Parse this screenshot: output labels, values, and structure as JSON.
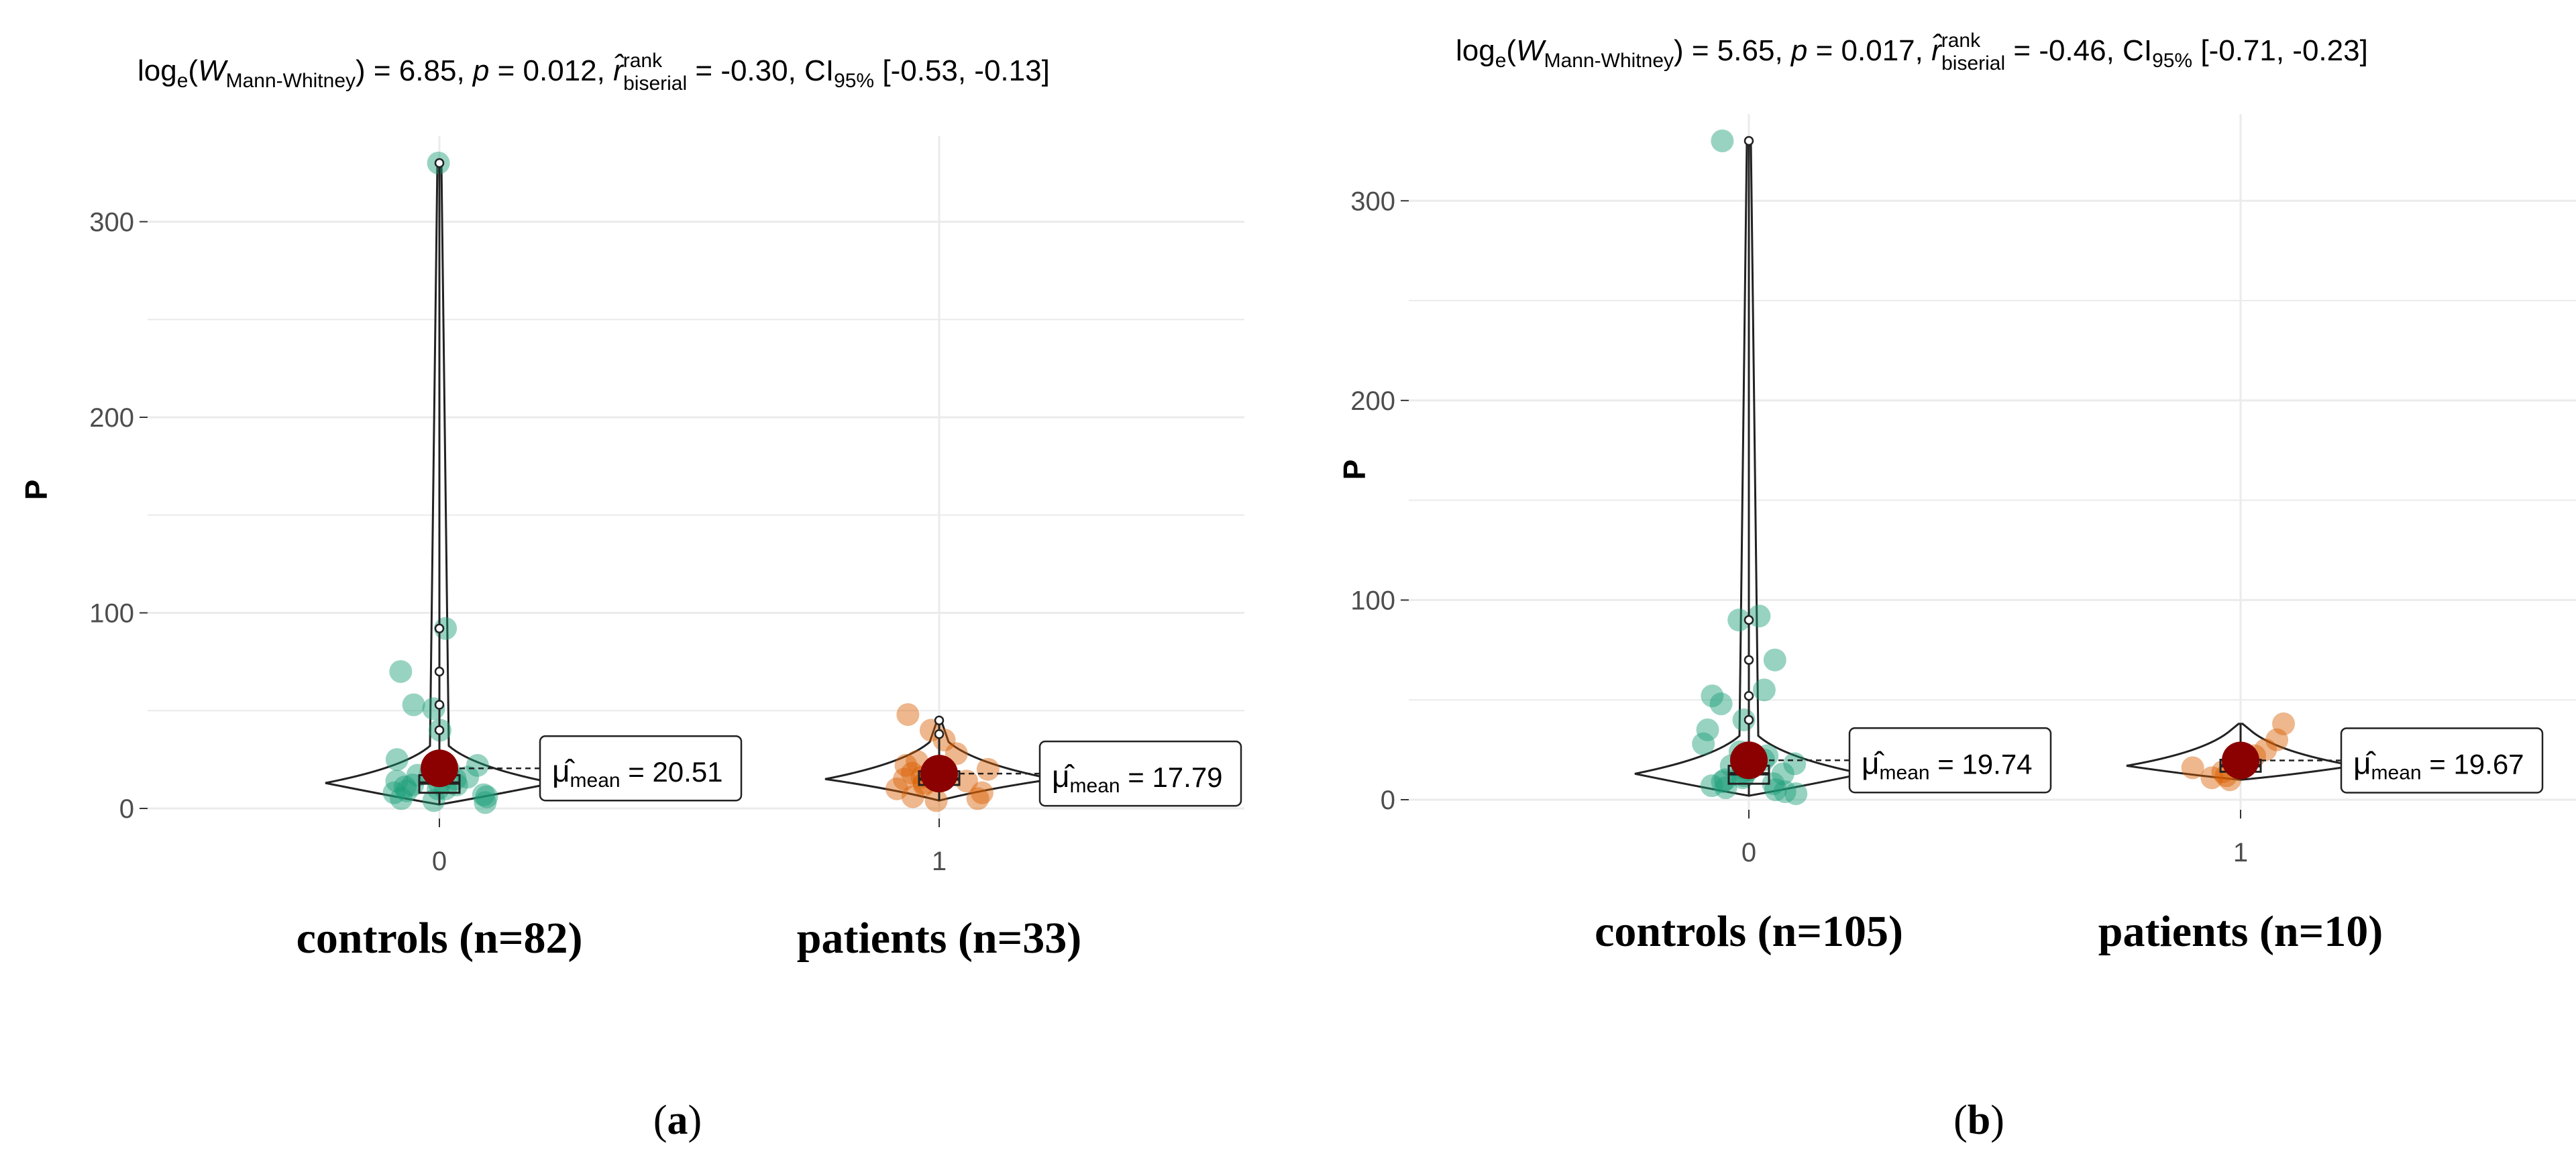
{
  "chart_data": [
    {
      "type": "violin-box-scatter",
      "panel_label": "a",
      "title": "log_e(W_Mann-Whitney) = 6.85, p = 0.012, r̂_biserial^rank = -0.30, CI_95% [-0.53, -0.13]",
      "title_parts": {
        "W_value": "6.85",
        "p_value": "0.012",
        "r_value": "-0.30",
        "ci": "[-0.53, -0.13]"
      },
      "ylabel": "P",
      "ylim": [
        0,
        330
      ],
      "yticks": [
        0,
        100,
        200,
        300
      ],
      "grid": true,
      "groups": [
        {
          "tick": "0",
          "label": "controls (n=82)",
          "color": "#1b9e77",
          "mean": 20.51,
          "mean_label": "20.51",
          "box": {
            "q1": 8,
            "median": 13,
            "q3": 17,
            "whisker_low": 2,
            "whisker_high": 330
          },
          "outliers": [
            92,
            70,
            53,
            40,
            330
          ],
          "points": [
            330,
            92,
            70,
            53,
            51,
            40,
            25,
            22,
            20,
            18,
            17,
            16,
            15,
            14,
            13,
            12,
            12,
            11,
            10,
            10,
            9,
            8,
            7,
            6,
            5,
            4,
            3
          ]
        },
        {
          "tick": "1",
          "label": "patients (n=33)",
          "color": "#d95f02",
          "mean": 17.79,
          "mean_label": "17.79",
          "box": {
            "q1": 12,
            "median": 15,
            "q3": 19,
            "whisker_low": 4,
            "whisker_high": 45
          },
          "outliers": [
            45,
            38
          ],
          "points": [
            48,
            40,
            35,
            28,
            24,
            22,
            20,
            19,
            18,
            17,
            16,
            15,
            14,
            13,
            12,
            10,
            8,
            6,
            5,
            4
          ]
        }
      ]
    },
    {
      "type": "violin-box-scatter",
      "panel_label": "b",
      "title": "log_e(W_Mann-Whitney) = 5.65, p = 0.017, r̂_biserial^rank = -0.46, CI_95% [-0.71, -0.23]",
      "title_parts": {
        "W_value": "5.65",
        "p_value": "0.017",
        "r_value": "-0.46",
        "ci": "[-0.71, -0.23]"
      },
      "ylabel": "P",
      "ylim": [
        0,
        330
      ],
      "yticks": [
        0,
        100,
        200,
        300
      ],
      "grid": true,
      "groups": [
        {
          "tick": "0",
          "label": "controls (n=105)",
          "color": "#1b9e77",
          "mean": 19.74,
          "mean_label": "19.74",
          "box": {
            "q1": 8,
            "median": 13,
            "q3": 17,
            "whisker_low": 2,
            "whisker_high": 330
          },
          "outliers": [
            90,
            70,
            52,
            40,
            330
          ],
          "points": [
            330,
            92,
            90,
            70,
            55,
            52,
            48,
            40,
            35,
            28,
            24,
            22,
            20,
            18,
            17,
            16,
            15,
            14,
            13,
            12,
            11,
            10,
            9,
            8,
            7,
            6,
            5,
            4,
            3
          ]
        },
        {
          "tick": "1",
          "label": "patients (n=10)",
          "color": "#d95f02",
          "mean": 19.67,
          "mean_label": "19.67",
          "box": {
            "q1": 14,
            "median": 17,
            "q3": 20,
            "whisker_low": 10,
            "whisker_high": 38
          },
          "outliers": [],
          "points": [
            38,
            30,
            25,
            22,
            18,
            16,
            14,
            12,
            11,
            10
          ]
        }
      ]
    }
  ],
  "style": {
    "mean_color": "#8b0000",
    "grid_color": "#ebebeb",
    "axis_text_color": "#4d4d4d"
  }
}
